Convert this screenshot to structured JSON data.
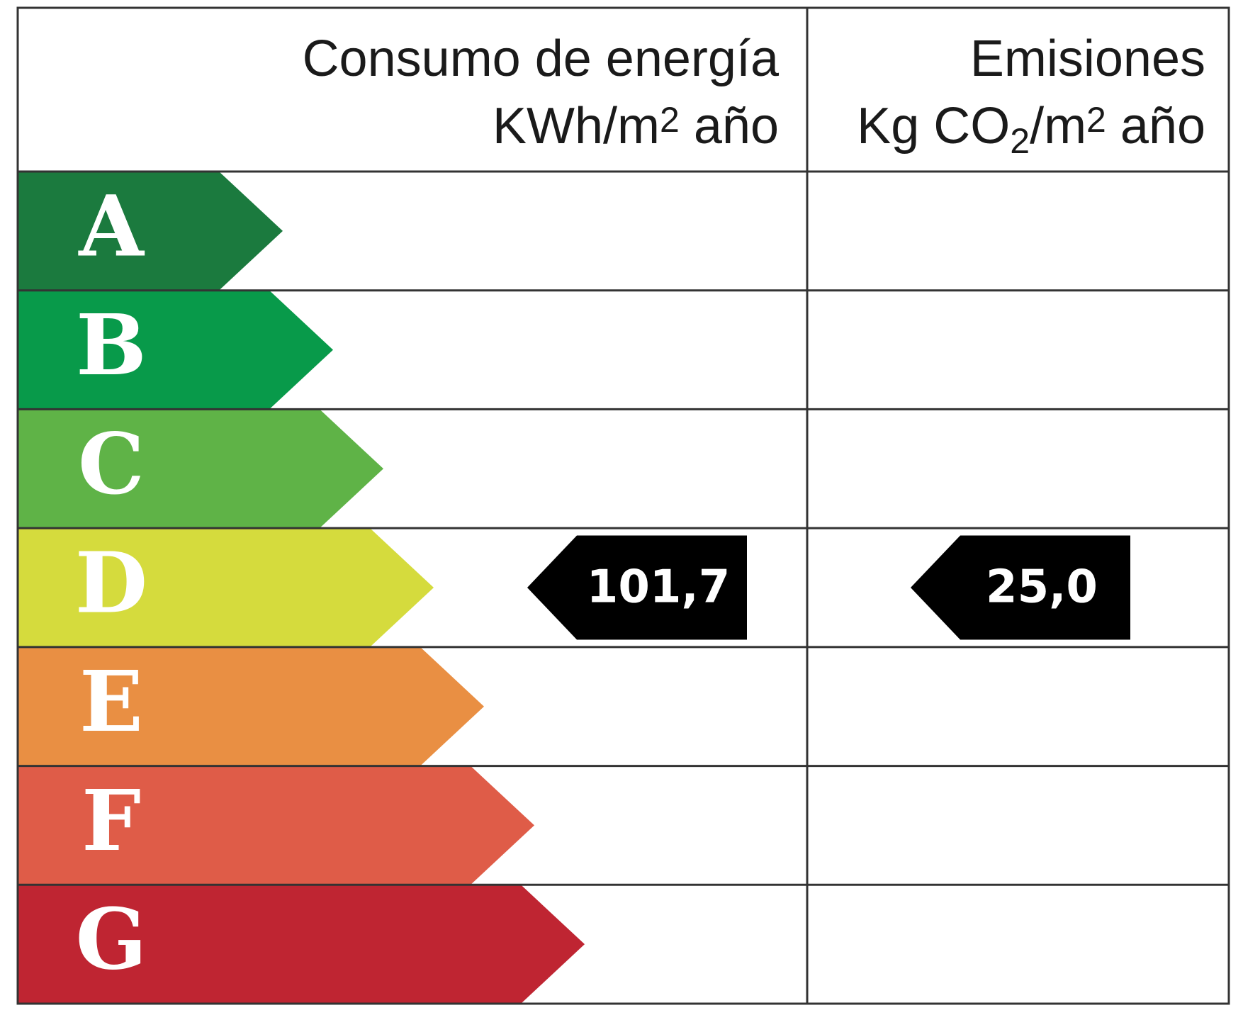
{
  "header": {
    "energy": {
      "title": "Consumo de energía",
      "unit": [
        "KWh/m",
        "2",
        " año"
      ]
    },
    "emissions": {
      "title": "Emisiones",
      "unit": [
        "Kg CO",
        "2",
        "/m",
        "2",
        " año"
      ]
    }
  },
  "grades": [
    {
      "letter": "A",
      "color": "#1b7a3e"
    },
    {
      "letter": "B",
      "color": "#089a4a"
    },
    {
      "letter": "C",
      "color": "#5fb347"
    },
    {
      "letter": "D",
      "color": "#d5db3d"
    },
    {
      "letter": "E",
      "color": "#e98f43"
    },
    {
      "letter": "F",
      "color": "#df5c48"
    },
    {
      "letter": "G",
      "color": "#bf2532"
    }
  ],
  "ratings": {
    "energy": {
      "grade": "D",
      "value": "101,7"
    },
    "emissions": {
      "grade": "D",
      "value": "25,0"
    }
  }
}
